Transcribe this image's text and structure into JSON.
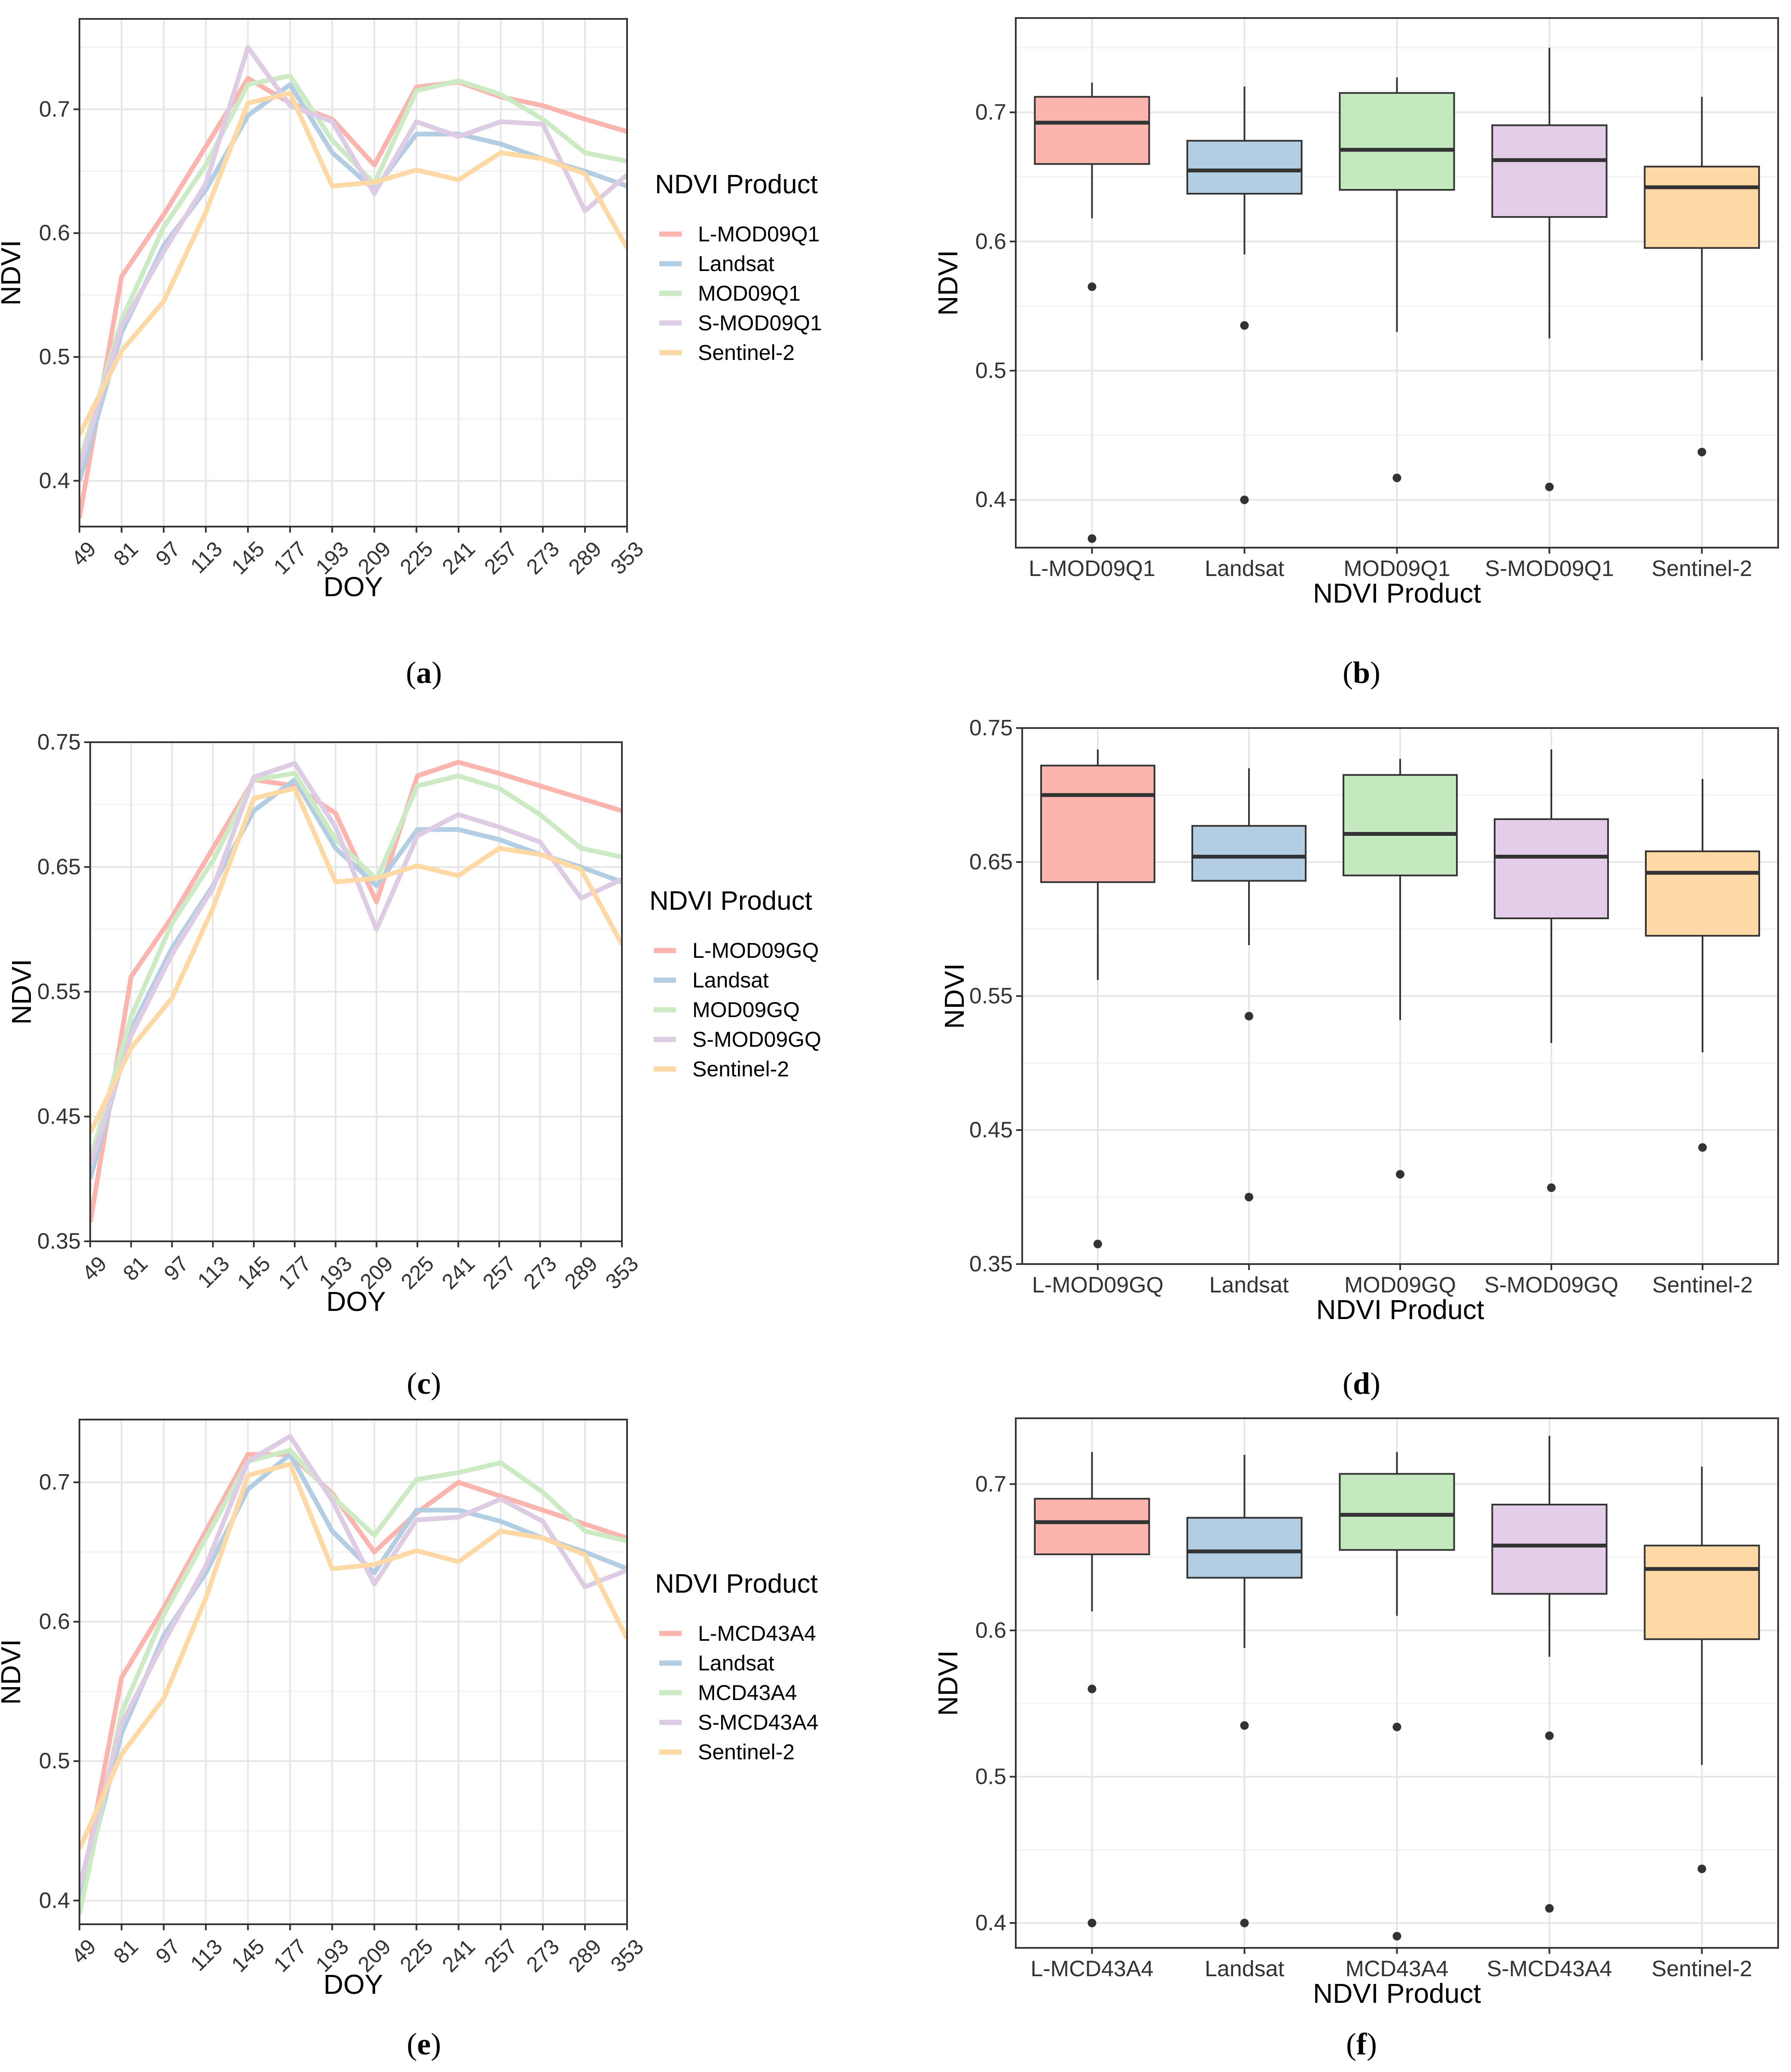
{
  "figure": {
    "panel_labels": [
      {
        "open": "(",
        "letter": "a",
        "close": ")"
      },
      {
        "open": "(",
        "letter": "b",
        "close": ")"
      },
      {
        "open": "(",
        "letter": "c",
        "close": ")"
      },
      {
        "open": "(",
        "letter": "d",
        "close": ")"
      },
      {
        "open": "(",
        "letter": "e",
        "close": ")"
      },
      {
        "open": "(",
        "letter": "f",
        "close": ")"
      }
    ]
  },
  "colors": {
    "salmon": "#FBB4AE",
    "blue": "#B3CDE3",
    "green": "#CCEBC5",
    "lilac": "#DECBE4",
    "orange": "#FED9A6",
    "box_salmon": "#FBB4AE",
    "box_blue": "#B3CDE3",
    "box_green": "#C5E9BF",
    "box_lilac": "#E3CDE8",
    "box_orange": "#FED9A6"
  },
  "chart_data": [
    {
      "id": "a",
      "type": "line",
      "xlabel": "DOY",
      "ylabel": "NDVI",
      "legend_title": "NDVI Product",
      "categories": [
        "49",
        "81",
        "97",
        "113",
        "145",
        "177",
        "193",
        "209",
        "225",
        "241",
        "257",
        "273",
        "289",
        "353"
      ],
      "yticks": [
        "0.4",
        "0.5",
        "0.6",
        "0.7"
      ],
      "ylim": [
        0.363,
        0.773
      ],
      "series": [
        {
          "name": "L-MOD09Q1",
          "color": "#FBB4AE",
          "values": [
            0.37,
            0.565,
            0.615,
            0.67,
            0.725,
            0.705,
            0.692,
            0.655,
            0.718,
            0.722,
            0.71,
            0.703,
            0.692,
            0.682
          ]
        },
        {
          "name": "Landsat",
          "color": "#B3CDE3",
          "values": [
            0.4,
            0.52,
            0.59,
            0.635,
            0.695,
            0.72,
            0.665,
            0.635,
            0.68,
            0.68,
            0.672,
            0.66,
            0.65,
            0.638
          ]
        },
        {
          "name": "MOD09Q1",
          "color": "#CCEBC5",
          "values": [
            0.415,
            0.53,
            0.605,
            0.655,
            0.72,
            0.727,
            0.675,
            0.64,
            0.715,
            0.723,
            0.712,
            0.692,
            0.665,
            0.658
          ]
        },
        {
          "name": "S-MOD09Q1",
          "color": "#DECBE4",
          "values": [
            0.41,
            0.525,
            0.585,
            0.64,
            0.75,
            0.703,
            0.69,
            0.632,
            0.69,
            0.678,
            0.69,
            0.688,
            0.618,
            0.647
          ]
        },
        {
          "name": "Sentinel-2",
          "color": "#FED9A6",
          "values": [
            0.437,
            0.505,
            0.545,
            0.617,
            0.705,
            0.713,
            0.638,
            0.641,
            0.651,
            0.643,
            0.665,
            0.66,
            0.648,
            0.588
          ]
        }
      ]
    },
    {
      "id": "b",
      "type": "box",
      "xlabel": "NDVI Product",
      "ylabel": "NDVI",
      "yticks": [
        "0.4",
        "0.5",
        "0.6",
        "0.7"
      ],
      "ylim": [
        0.363,
        0.773
      ],
      "boxes": [
        {
          "name": "L-MOD09Q1",
          "color": "#FBB4AE",
          "q1": 0.66,
          "median": 0.692,
          "q3": 0.712,
          "lower": 0.618,
          "upper": 0.723,
          "outliers": [
            0.565,
            0.37
          ]
        },
        {
          "name": "Landsat",
          "color": "#B3CDE3",
          "q1": 0.637,
          "median": 0.655,
          "q3": 0.678,
          "lower": 0.59,
          "upper": 0.72,
          "outliers": [
            0.535,
            0.4
          ]
        },
        {
          "name": "MOD09Q1",
          "color": "#C5E9BF",
          "q1": 0.64,
          "median": 0.671,
          "q3": 0.715,
          "lower": 0.53,
          "upper": 0.727,
          "outliers": [
            0.417
          ]
        },
        {
          "name": "S-MOD09Q1",
          "color": "#E3CDE8",
          "q1": 0.619,
          "median": 0.663,
          "q3": 0.69,
          "lower": 0.525,
          "upper": 0.75,
          "outliers": [
            0.41
          ]
        },
        {
          "name": "Sentinel-2",
          "color": "#FED9A6",
          "q1": 0.595,
          "median": 0.642,
          "q3": 0.658,
          "lower": 0.508,
          "upper": 0.712,
          "outliers": [
            0.437
          ]
        }
      ]
    },
    {
      "id": "c",
      "type": "line",
      "xlabel": "DOY",
      "ylabel": "NDVI",
      "legend_title": "NDVI Product",
      "categories": [
        "49",
        "81",
        "97",
        "113",
        "145",
        "177",
        "193",
        "209",
        "225",
        "241",
        "257",
        "273",
        "289",
        "353"
      ],
      "yticks": [
        "0.35",
        "0.45",
        "0.55",
        "0.65",
        "0.75"
      ],
      "ylim": [
        0.35,
        0.75
      ],
      "series": [
        {
          "name": "L-MOD09GQ",
          "color": "#FBB4AE",
          "values": [
            0.365,
            0.562,
            0.61,
            0.665,
            0.72,
            0.715,
            0.693,
            0.622,
            0.723,
            0.734,
            0.725,
            0.715,
            0.705,
            0.695
          ]
        },
        {
          "name": "Landsat",
          "color": "#B3CDE3",
          "values": [
            0.4,
            0.52,
            0.585,
            0.635,
            0.695,
            0.72,
            0.665,
            0.635,
            0.68,
            0.68,
            0.672,
            0.66,
            0.65,
            0.638
          ]
        },
        {
          "name": "MOD09GQ",
          "color": "#CCEBC5",
          "values": [
            0.415,
            0.53,
            0.605,
            0.655,
            0.72,
            0.725,
            0.672,
            0.64,
            0.715,
            0.723,
            0.713,
            0.692,
            0.665,
            0.658
          ]
        },
        {
          "name": "S-MOD09GQ",
          "color": "#DECBE4",
          "values": [
            0.41,
            0.515,
            0.58,
            0.633,
            0.722,
            0.733,
            0.682,
            0.6,
            0.675,
            0.692,
            0.682,
            0.67,
            0.625,
            0.64
          ]
        },
        {
          "name": "Sentinel-2",
          "color": "#FED9A6",
          "values": [
            0.437,
            0.505,
            0.545,
            0.617,
            0.705,
            0.713,
            0.638,
            0.641,
            0.651,
            0.643,
            0.665,
            0.66,
            0.648,
            0.588
          ]
        }
      ]
    },
    {
      "id": "d",
      "type": "box",
      "xlabel": "NDVI Product",
      "ylabel": "NDVI",
      "yticks": [
        "0.35",
        "0.45",
        "0.55",
        "0.65",
        "0.75"
      ],
      "ylim": [
        0.35,
        0.75
      ],
      "boxes": [
        {
          "name": "L-MOD09GQ",
          "color": "#FBB4AE",
          "q1": 0.635,
          "median": 0.7,
          "q3": 0.722,
          "lower": 0.562,
          "upper": 0.734,
          "outliers": [
            0.365
          ]
        },
        {
          "name": "Landsat",
          "color": "#B3CDE3",
          "q1": 0.636,
          "median": 0.654,
          "q3": 0.677,
          "lower": 0.588,
          "upper": 0.72,
          "outliers": [
            0.535,
            0.4
          ]
        },
        {
          "name": "MOD09GQ",
          "color": "#C5E9BF",
          "q1": 0.64,
          "median": 0.671,
          "q3": 0.715,
          "lower": 0.532,
          "upper": 0.727,
          "outliers": [
            0.417
          ]
        },
        {
          "name": "S-MOD09GQ",
          "color": "#E3CDE8",
          "q1": 0.608,
          "median": 0.654,
          "q3": 0.682,
          "lower": 0.515,
          "upper": 0.734,
          "outliers": [
            0.407
          ]
        },
        {
          "name": "Sentinel-2",
          "color": "#FED9A6",
          "q1": 0.595,
          "median": 0.642,
          "q3": 0.658,
          "lower": 0.508,
          "upper": 0.712,
          "outliers": [
            0.437
          ]
        }
      ]
    },
    {
      "id": "e",
      "type": "line",
      "xlabel": "DOY",
      "ylabel": "NDVI",
      "legend_title": "NDVI Product",
      "categories": [
        "49",
        "81",
        "97",
        "113",
        "145",
        "177",
        "193",
        "209",
        "225",
        "241",
        "257",
        "273",
        "289",
        "353"
      ],
      "yticks": [
        "0.4",
        "0.5",
        "0.6",
        "0.7"
      ],
      "ylim": [
        0.383,
        0.745
      ],
      "series": [
        {
          "name": "L-MCD43A4",
          "color": "#FBB4AE",
          "values": [
            0.4,
            0.56,
            0.61,
            0.665,
            0.72,
            0.72,
            0.692,
            0.65,
            0.678,
            0.7,
            0.69,
            0.68,
            0.67,
            0.66
          ]
        },
        {
          "name": "Landsat",
          "color": "#B3CDE3",
          "values": [
            0.4,
            0.52,
            0.59,
            0.635,
            0.695,
            0.72,
            0.665,
            0.635,
            0.68,
            0.68,
            0.672,
            0.66,
            0.65,
            0.638
          ]
        },
        {
          "name": "MCD43A4",
          "color": "#CCEBC5",
          "values": [
            0.39,
            0.535,
            0.605,
            0.66,
            0.715,
            0.723,
            0.69,
            0.662,
            0.702,
            0.707,
            0.714,
            0.693,
            0.665,
            0.658
          ]
        },
        {
          "name": "S-MCD43A4",
          "color": "#DECBE4",
          "values": [
            0.41,
            0.527,
            0.585,
            0.64,
            0.715,
            0.733,
            0.687,
            0.627,
            0.673,
            0.675,
            0.688,
            0.672,
            0.625,
            0.637
          ]
        },
        {
          "name": "Sentinel-2",
          "color": "#FED9A6",
          "values": [
            0.437,
            0.505,
            0.545,
            0.617,
            0.705,
            0.713,
            0.638,
            0.641,
            0.651,
            0.643,
            0.665,
            0.66,
            0.648,
            0.588
          ]
        }
      ]
    },
    {
      "id": "f",
      "type": "box",
      "xlabel": "NDVI Product",
      "ylabel": "NDVI",
      "yticks": [
        "0.4",
        "0.5",
        "0.6",
        "0.7"
      ],
      "ylim": [
        0.383,
        0.745
      ],
      "boxes": [
        {
          "name": "L-MCD43A4",
          "color": "#FBB4AE",
          "q1": 0.652,
          "median": 0.674,
          "q3": 0.69,
          "lower": 0.613,
          "upper": 0.722,
          "outliers": [
            0.56,
            0.4
          ]
        },
        {
          "name": "Landsat",
          "color": "#B3CDE3",
          "q1": 0.636,
          "median": 0.654,
          "q3": 0.677,
          "lower": 0.588,
          "upper": 0.72,
          "outliers": [
            0.535,
            0.4
          ]
        },
        {
          "name": "MCD43A4",
          "color": "#C5E9BF",
          "q1": 0.655,
          "median": 0.679,
          "q3": 0.707,
          "lower": 0.61,
          "upper": 0.722,
          "outliers": [
            0.534,
            0.391
          ]
        },
        {
          "name": "S-MCD43A4",
          "color": "#E3CDE8",
          "q1": 0.625,
          "median": 0.658,
          "q3": 0.686,
          "lower": 0.582,
          "upper": 0.733,
          "outliers": [
            0.528,
            0.41
          ]
        },
        {
          "name": "Sentinel-2",
          "color": "#FED9A6",
          "q1": 0.594,
          "median": 0.642,
          "q3": 0.658,
          "lower": 0.508,
          "upper": 0.712,
          "outliers": [
            0.437
          ]
        }
      ]
    }
  ]
}
